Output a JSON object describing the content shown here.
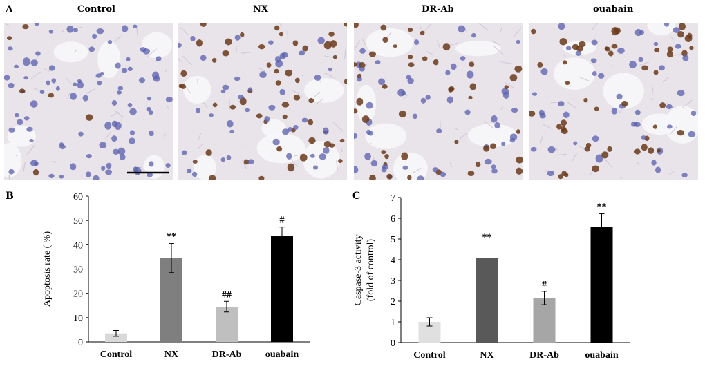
{
  "panel_a": {
    "letter": "A",
    "images": [
      {
        "label": "Control"
      },
      {
        "label": "NX"
      },
      {
        "label": "DR-Ab"
      },
      {
        "label": "ouabain"
      }
    ]
  },
  "colors": {
    "tissue_bg": "#e9e4ea",
    "blue_nucleus": "#5a5fae",
    "brown_nucleus": "#6a3a1a",
    "bar_control": "#d9d9d9",
    "bar_nx": "#7f7f7f",
    "bar_drab": "#bfbfbf",
    "bar_ouabain": "#000000"
  },
  "chart_data": [
    {
      "type": "bar",
      "panel": "B",
      "categories": [
        "Control",
        "NX",
        "DR-Ab",
        "ouabain"
      ],
      "values": [
        3.5,
        34.5,
        14.5,
        43.5
      ],
      "errors": [
        1.2,
        6.0,
        2.2,
        3.8
      ],
      "annotations": [
        "",
        "**",
        "##",
        "#"
      ],
      "title": "",
      "xlabel": "",
      "ylabel": "Apoptosis rate ( %)",
      "ylim": [
        0,
        60
      ],
      "yticks": [
        0,
        10,
        20,
        30,
        40,
        50,
        60
      ],
      "grid": false
    },
    {
      "type": "bar",
      "panel": "C",
      "categories": [
        "Control",
        "NX",
        "DR-Ab",
        "ouabain"
      ],
      "values": [
        1.0,
        4.1,
        2.15,
        5.6
      ],
      "errors": [
        0.2,
        0.65,
        0.32,
        0.62
      ],
      "annotations": [
        "",
        "**",
        "#",
        "**"
      ],
      "title": "",
      "xlabel": "",
      "ylabel": "Caspase-3 activity",
      "ylabel2": "(fold of control)",
      "ylim": [
        0,
        7
      ],
      "yticks": [
        0,
        1,
        2,
        3,
        4,
        5,
        6,
        7
      ],
      "grid": false
    }
  ]
}
